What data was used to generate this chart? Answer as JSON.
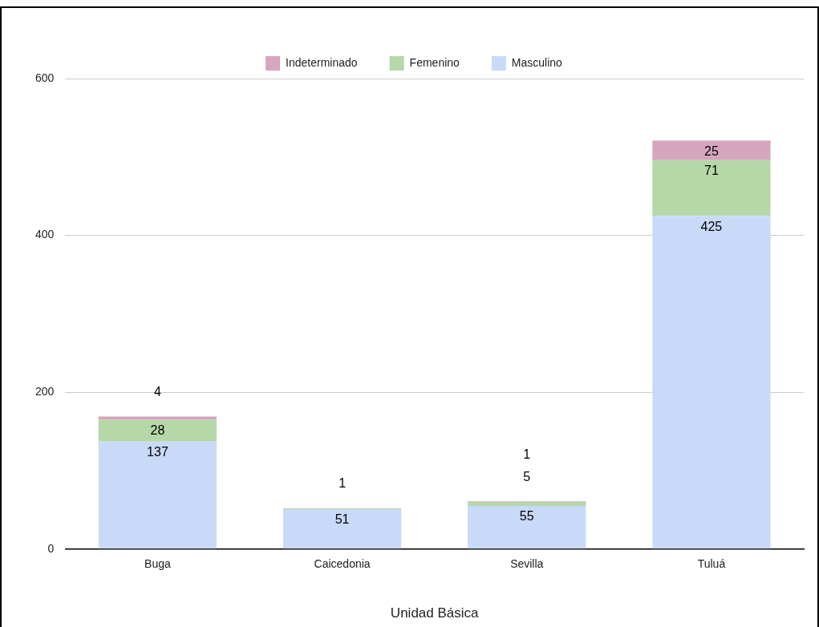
{
  "chart_data": {
    "type": "bar",
    "stacked": true,
    "xlabel": "Unidad Básica",
    "categories": [
      "Buga",
      "Caicedonia",
      "Sevilla",
      "Tuluá"
    ],
    "series": [
      {
        "name": "Masculino",
        "color": "#c9daf8",
        "values": [
          137,
          51,
          55,
          425
        ]
      },
      {
        "name": "Femenino",
        "color": "#b6d7a8",
        "values": [
          28,
          1,
          5,
          71
        ]
      },
      {
        "name": "Indeterminado",
        "color": "#d5a6bd",
        "values": [
          4,
          null,
          1,
          25
        ]
      }
    ],
    "ylim": [
      0,
      600
    ],
    "yticks": [
      0,
      200,
      400,
      600
    ],
    "grid": "y",
    "legend": "top",
    "data_labels": true
  }
}
